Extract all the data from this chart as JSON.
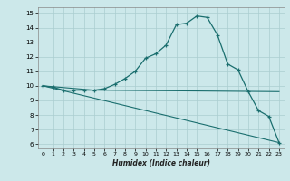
{
  "xlabel": "Humidex (Indice chaleur)",
  "bg_color": "#cce8ea",
  "grid_color": "#aacdd0",
  "line_color": "#1a6e6e",
  "xlim": [
    -0.5,
    23.5
  ],
  "ylim": [
    5.7,
    15.4
  ],
  "xticks": [
    0,
    1,
    2,
    3,
    4,
    5,
    6,
    7,
    8,
    9,
    10,
    11,
    12,
    13,
    14,
    15,
    16,
    17,
    18,
    19,
    20,
    21,
    22,
    23
  ],
  "yticks": [
    6,
    7,
    8,
    9,
    10,
    11,
    12,
    13,
    14,
    15
  ],
  "line1_x": [
    0,
    1,
    2,
    3,
    4,
    5,
    6,
    7,
    8,
    9,
    10,
    11,
    12,
    13,
    14,
    15,
    16,
    17,
    18,
    19,
    20,
    21,
    22,
    23
  ],
  "line1_y": [
    10.0,
    9.9,
    9.7,
    9.7,
    9.7,
    9.7,
    9.8,
    10.1,
    10.5,
    11.0,
    11.9,
    12.2,
    12.8,
    14.2,
    14.3,
    14.8,
    14.7,
    13.5,
    11.5,
    11.1,
    9.6,
    8.3,
    7.9,
    6.1
  ],
  "line2_x": [
    0,
    5,
    23
  ],
  "line2_y": [
    10.0,
    9.7,
    9.6
  ],
  "line3_x": [
    0,
    23
  ],
  "line3_y": [
    10.0,
    6.1
  ]
}
